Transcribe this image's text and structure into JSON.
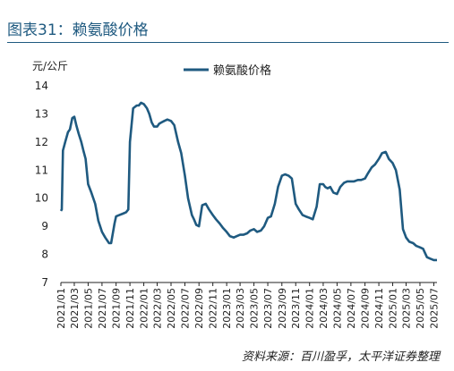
{
  "figure_title": "图表31：赖氨酸价格",
  "source": "资料来源：百川盈孚，太平洋证券整理",
  "colors": {
    "series": "#1f5a80",
    "axis": "#222222",
    "title": "#1f5a80"
  },
  "chart_data": {
    "type": "line",
    "title": "",
    "xlabel": "",
    "ylabel": "元/公斤",
    "ylim": [
      7,
      14
    ],
    "yticks": [
      7,
      8,
      9,
      10,
      11,
      12,
      13,
      14
    ],
    "grid": false,
    "legend_position": "top-center",
    "xticks": [
      "2021/01",
      "2021/03",
      "2021/05",
      "2021/07",
      "2021/09",
      "2021/11",
      "2022/01",
      "2022/03",
      "2022/05",
      "2022/07",
      "2022/09",
      "2022/11",
      "2023/01",
      "2023/03",
      "2023/05",
      "2023/07",
      "2023/09",
      "2023/11",
      "2024/01",
      "2024/03",
      "2024/05",
      "2024/07",
      "2024/09",
      "2024/11",
      "2025/01",
      "2025/03",
      "2025/05",
      "2025/07"
    ],
    "series": [
      {
        "name": "赖氨酸价格",
        "x": [
          "2021/01/01",
          "2021/01/05",
          "2021/01/10",
          "2021/01/20",
          "2021/02/01",
          "2021/02/10",
          "2021/02/20",
          "2021/03/01",
          "2021/03/10",
          "2021/03/20",
          "2021/04/01",
          "2021/04/10",
          "2021/04/20",
          "2021/05/01",
          "2021/05/15",
          "2021/06/01",
          "2021/06/15",
          "2021/07/01",
          "2021/07/15",
          "2021/08/01",
          "2021/08/10",
          "2021/08/25",
          "2021/09/01",
          "2021/09/15",
          "2021/10/01",
          "2021/10/15",
          "2021/10/25",
          "2021/11/01",
          "2021/11/15",
          "2021/12/01",
          "2021/12/10",
          "2021/12/20",
          "2022/01/01",
          "2022/01/15",
          "2022/01/25",
          "2022/02/05",
          "2022/02/15",
          "2022/03/01",
          "2022/03/10",
          "2022/03/20",
          "2022/04/01",
          "2022/04/15",
          "2022/05/01",
          "2022/05/15",
          "2022/06/01",
          "2022/06/15",
          "2022/07/01",
          "2022/07/15",
          "2022/08/01",
          "2022/08/10",
          "2022/08/20",
          "2022/09/01",
          "2022/09/15",
          "2022/10/01",
          "2022/10/15",
          "2022/11/01",
          "2022/11/15",
          "2022/12/01",
          "2022/12/15",
          "2023/01/01",
          "2023/01/15",
          "2023/02/01",
          "2023/02/15",
          "2023/03/01",
          "2023/03/15",
          "2023/04/01",
          "2023/04/15",
          "2023/05/01",
          "2023/05/15",
          "2023/06/01",
          "2023/06/15",
          "2023/07/01",
          "2023/07/15",
          "2023/08/01",
          "2023/08/15",
          "2023/09/01",
          "2023/09/15",
          "2023/10/01",
          "2023/10/15",
          "2023/11/01",
          "2023/11/15",
          "2023/12/01",
          "2023/12/15",
          "2024/01/01",
          "2024/01/15",
          "2024/02/01",
          "2024/02/15",
          "2024/03/01",
          "2024/03/10",
          "2024/03/20",
          "2024/04/01",
          "2024/04/15",
          "2024/05/01",
          "2024/05/15",
          "2024/06/01",
          "2024/06/15",
          "2024/07/01",
          "2024/07/15",
          "2024/08/01",
          "2024/08/15",
          "2024/09/01",
          "2024/09/15",
          "2024/10/01",
          "2024/10/15",
          "2024/11/01",
          "2024/11/15",
          "2024/12/01",
          "2024/12/15",
          "2025/01/01",
          "2025/01/15",
          "2025/02/01",
          "2025/02/15",
          "2025/03/01",
          "2025/03/15",
          "2025/04/01",
          "2025/04/15",
          "2025/05/01",
          "2025/05/15",
          "2025/06/01",
          "2025/06/15",
          "2025/07/01",
          "2025/07/15"
        ],
        "values": [
          9.55,
          9.6,
          11.7,
          12.0,
          12.35,
          12.45,
          12.85,
          12.9,
          12.6,
          12.3,
          12.0,
          11.7,
          11.4,
          10.5,
          10.2,
          9.8,
          9.2,
          8.8,
          8.6,
          8.4,
          8.4,
          9.1,
          9.35,
          9.4,
          9.45,
          9.5,
          9.6,
          12.0,
          13.2,
          13.3,
          13.3,
          13.4,
          13.35,
          13.2,
          13.0,
          12.7,
          12.55,
          12.55,
          12.65,
          12.7,
          12.75,
          12.8,
          12.75,
          12.6,
          12.0,
          11.6,
          10.8,
          10.0,
          9.4,
          9.25,
          9.05,
          9.0,
          9.75,
          9.8,
          9.6,
          9.4,
          9.25,
          9.1,
          8.95,
          8.8,
          8.65,
          8.6,
          8.65,
          8.7,
          8.7,
          8.75,
          8.85,
          8.9,
          8.8,
          8.85,
          9.0,
          9.3,
          9.35,
          9.8,
          10.4,
          10.8,
          10.85,
          10.8,
          10.7,
          9.8,
          9.6,
          9.4,
          9.35,
          9.3,
          9.25,
          9.7,
          10.5,
          10.5,
          10.4,
          10.35,
          10.4,
          10.2,
          10.15,
          10.4,
          10.55,
          10.6,
          10.6,
          10.6,
          10.65,
          10.65,
          10.7,
          10.9,
          11.1,
          11.2,
          11.4,
          11.6,
          11.65,
          11.4,
          11.25,
          11.0,
          10.3,
          8.9,
          8.6,
          8.45,
          8.4,
          8.3,
          8.25,
          8.2,
          7.9,
          7.85,
          7.8,
          7.8
        ]
      }
    ]
  }
}
